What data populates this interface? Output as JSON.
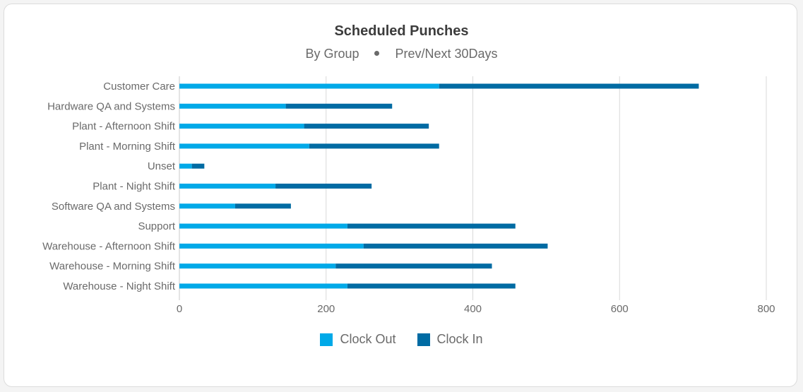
{
  "chart_data": {
    "type": "bar",
    "orientation": "horizontal",
    "stacked": true,
    "title": "Scheduled Punches",
    "subtitle_parts": [
      "By Group",
      "Prev/Next 30Days"
    ],
    "categories": [
      "Customer Care",
      "Hardware QA and Systems",
      "Plant - Afternoon Shift",
      "Plant - Morning Shift",
      "Unset",
      "Plant - Night Shift",
      "Software QA and Systems",
      "Support",
      "Warehouse - Afternoon Shift",
      "Warehouse - Morning Shift",
      "Warehouse - Night Shift"
    ],
    "series": [
      {
        "name": "Clock Out",
        "color": "#00a9e8",
        "values": [
          354,
          145,
          170,
          177,
          17,
          131,
          76,
          229,
          251,
          213,
          229
        ]
      },
      {
        "name": "Clock In",
        "color": "#006ba3",
        "values": [
          354,
          145,
          170,
          177,
          17,
          131,
          76,
          229,
          251,
          213,
          229
        ]
      }
    ],
    "xlim": [
      0,
      800
    ],
    "xticks": [
      "0",
      "200",
      "400",
      "600",
      "800"
    ],
    "grid": true,
    "legend_position": "bottom"
  }
}
